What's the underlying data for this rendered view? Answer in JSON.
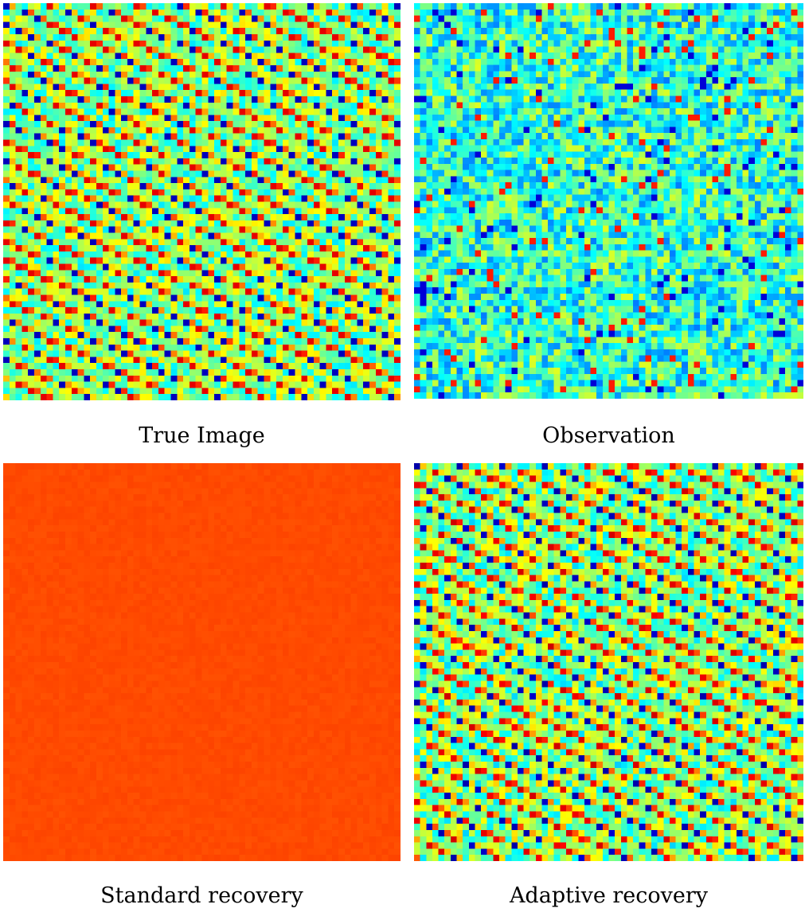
{
  "panels": [
    {
      "id": "true",
      "caption": "True Image",
      "render": "stripes",
      "noise_level": 0.0,
      "seed": 11
    },
    {
      "id": "obs",
      "caption": "Observation",
      "render": "noisy",
      "noise_level": 0.85,
      "seed": 23
    },
    {
      "id": "std",
      "caption": "Standard recovery",
      "render": "flat",
      "base_color": "#ff4a00",
      "seed": 37
    },
    {
      "id": "adp",
      "caption": "Adaptive recovery",
      "render": "stripes",
      "noise_level": 0.05,
      "seed": 53
    }
  ],
  "grid_cells": 64,
  "colormap": [
    "#00008f",
    "#0000ff",
    "#0080ff",
    "#00ffff",
    "#80ff80",
    "#ffff00",
    "#ff8000",
    "#ff0000",
    "#800000"
  ]
}
